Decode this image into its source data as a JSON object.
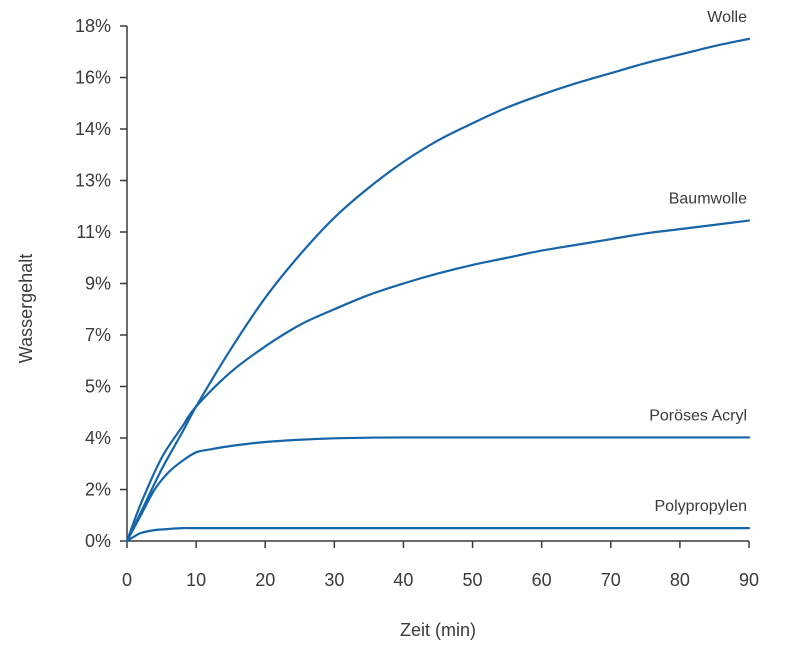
{
  "chart_data": {
    "type": "line",
    "xlabel": "Zeit (min)",
    "ylabel": "Wassergehalt",
    "xlim": [
      0,
      90
    ],
    "ylim": [
      0,
      18
    ],
    "x_ticks": [
      {
        "value": 0,
        "label": "0"
      },
      {
        "value": 10,
        "label": "10"
      },
      {
        "value": 20,
        "label": "20"
      },
      {
        "value": 30,
        "label": "30"
      },
      {
        "value": 40,
        "label": "40"
      },
      {
        "value": 50,
        "label": "50"
      },
      {
        "value": 60,
        "label": "60"
      },
      {
        "value": 70,
        "label": "70"
      },
      {
        "value": 80,
        "label": "80"
      },
      {
        "value": 90,
        "label": "90"
      }
    ],
    "y_ticks": [
      {
        "value": 0,
        "label": "0%"
      },
      {
        "value": 1.8,
        "label": "2%"
      },
      {
        "value": 3.6,
        "label": "4%"
      },
      {
        "value": 5.4,
        "label": "5%"
      },
      {
        "value": 7.2,
        "label": "7%"
      },
      {
        "value": 9,
        "label": "9%"
      },
      {
        "value": 10.8,
        "label": "11%"
      },
      {
        "value": 12.6,
        "label": "13%"
      },
      {
        "value": 14.4,
        "label": "14%"
      },
      {
        "value": 16.2,
        "label": "16%"
      },
      {
        "value": 18,
        "label": "18%"
      }
    ],
    "grid": false,
    "line_color": "#1565a8",
    "series": [
      {
        "name": "Wolle",
        "points": [
          [
            0,
            0
          ],
          [
            2,
            1.0
          ],
          [
            5,
            2.5
          ],
          [
            8,
            3.8
          ],
          [
            10,
            4.7
          ],
          [
            15,
            6.7
          ],
          [
            20,
            8.5
          ],
          [
            25,
            10.0
          ],
          [
            30,
            11.3
          ],
          [
            35,
            12.35
          ],
          [
            40,
            13.25
          ],
          [
            45,
            14.0
          ],
          [
            50,
            14.6
          ],
          [
            55,
            15.15
          ],
          [
            60,
            15.6
          ],
          [
            65,
            16.0
          ],
          [
            70,
            16.35
          ],
          [
            75,
            16.7
          ],
          [
            80,
            17.0
          ],
          [
            85,
            17.3
          ],
          [
            90,
            17.55
          ]
        ]
      },
      {
        "name": "Baumwolle",
        "points": [
          [
            0,
            0
          ],
          [
            2,
            1.3
          ],
          [
            5,
            2.9
          ],
          [
            8,
            4.0
          ],
          [
            10,
            4.7
          ],
          [
            15,
            5.9
          ],
          [
            20,
            6.8
          ],
          [
            25,
            7.55
          ],
          [
            30,
            8.1
          ],
          [
            35,
            8.6
          ],
          [
            40,
            9.0
          ],
          [
            45,
            9.35
          ],
          [
            50,
            9.65
          ],
          [
            55,
            9.9
          ],
          [
            60,
            10.15
          ],
          [
            65,
            10.35
          ],
          [
            70,
            10.55
          ],
          [
            75,
            10.75
          ],
          [
            80,
            10.9
          ],
          [
            85,
            11.05
          ],
          [
            90,
            11.2
          ]
        ]
      },
      {
        "name": "Poröses Acryl",
        "points": [
          [
            0,
            0
          ],
          [
            2,
            0.9
          ],
          [
            4,
            1.8
          ],
          [
            6,
            2.4
          ],
          [
            8,
            2.8
          ],
          [
            10,
            3.1
          ],
          [
            12,
            3.2
          ],
          [
            15,
            3.32
          ],
          [
            20,
            3.46
          ],
          [
            25,
            3.54
          ],
          [
            30,
            3.59
          ],
          [
            35,
            3.61
          ],
          [
            40,
            3.62
          ],
          [
            50,
            3.62
          ],
          [
            60,
            3.62
          ],
          [
            70,
            3.62
          ],
          [
            80,
            3.62
          ],
          [
            90,
            3.62
          ]
        ]
      },
      {
        "name": "Polypropylen",
        "points": [
          [
            0,
            0
          ],
          [
            1,
            0.15
          ],
          [
            2,
            0.28
          ],
          [
            4,
            0.38
          ],
          [
            6,
            0.42
          ],
          [
            8,
            0.45
          ],
          [
            10,
            0.45
          ],
          [
            20,
            0.45
          ],
          [
            30,
            0.45
          ],
          [
            40,
            0.45
          ],
          [
            50,
            0.45
          ],
          [
            60,
            0.45
          ],
          [
            70,
            0.45
          ],
          [
            80,
            0.45
          ],
          [
            90,
            0.45
          ]
        ]
      }
    ]
  }
}
